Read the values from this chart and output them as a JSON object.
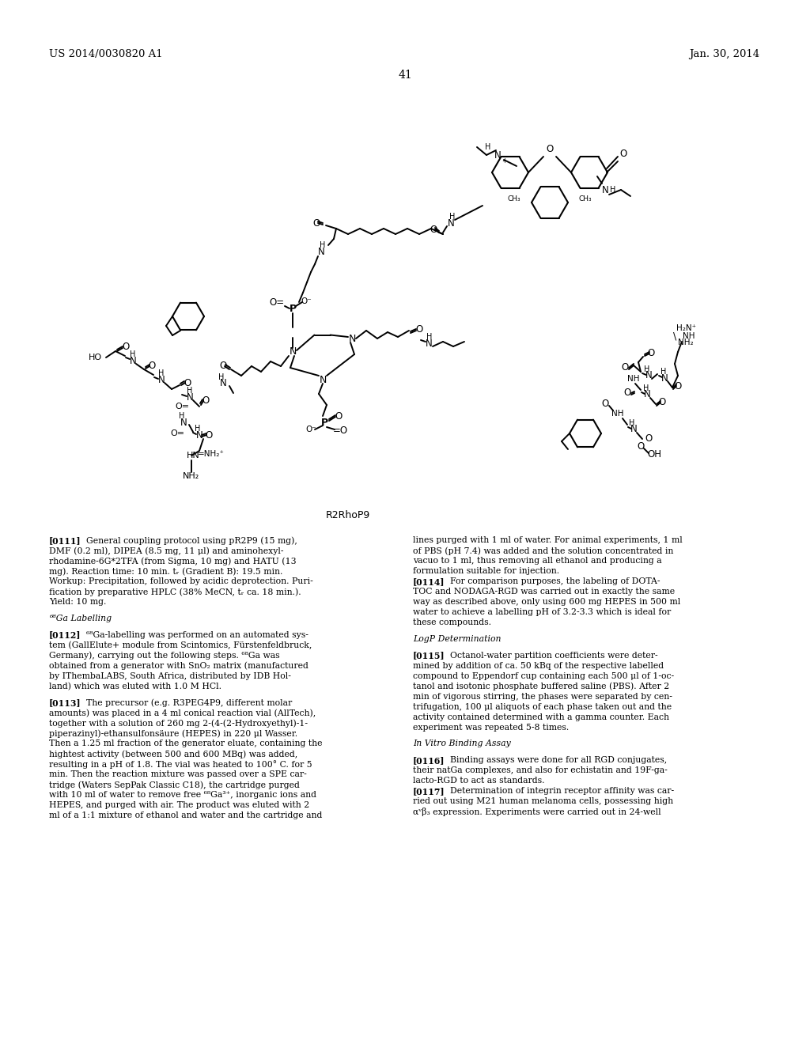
{
  "header_left": "US 2014/0030820 A1",
  "header_right": "Jan. 30, 2014",
  "page_number": "41",
  "background_color": "#ffffff",
  "text_color": "#000000",
  "molecule_label": "R2RhoP9",
  "col1_lines": [
    {
      "tag": "[0111]",
      "indent": true,
      "text": "  General coupling protocol using pR2P9 (15 mg),"
    },
    {
      "tag": "",
      "indent": false,
      "text": "DMF (0.2 ml), DIPEA (8.5 mg, 11 μl) and aminohexyl-"
    },
    {
      "tag": "",
      "indent": false,
      "text": "rhodamine-6G*2TFA (from Sigma, 10 mg) and HATU (13"
    },
    {
      "tag": "",
      "indent": false,
      "text": "mg). Reaction time: 10 min. tᵣ (Gradient B): 19.5 min."
    },
    {
      "tag": "",
      "indent": false,
      "text": "Workup: Precipitation, followed by acidic deprotection. Puri-"
    },
    {
      "tag": "",
      "indent": false,
      "text": "fication by preparative HPLC (38% MeCN, tᵣ ca. 18 min.)."
    },
    {
      "tag": "",
      "indent": false,
      "text": "Yield: 10 mg."
    },
    {
      "tag": "",
      "indent": false,
      "text": ""
    },
    {
      "tag": "heading",
      "indent": false,
      "text": "⁶⁸Ga Labelling"
    },
    {
      "tag": "",
      "indent": false,
      "text": ""
    },
    {
      "tag": "[0112]",
      "indent": true,
      "text": "  ⁶⁸Ga-labelling was performed on an automated sys-"
    },
    {
      "tag": "",
      "indent": false,
      "text": "tem (GallElute+ module from Scintomics, Fürstenfeldbruck,"
    },
    {
      "tag": "",
      "indent": false,
      "text": "Germany), carrying out the following steps. ⁶⁸Ga was"
    },
    {
      "tag": "",
      "indent": false,
      "text": "obtained from a generator with SnO₂ matrix (manufactured"
    },
    {
      "tag": "",
      "indent": false,
      "text": "by IThembaLABS, South Africa, distributed by IDB Hol-"
    },
    {
      "tag": "",
      "indent": false,
      "text": "land) which was eluted with 1.0 M HCl."
    },
    {
      "tag": "",
      "indent": false,
      "text": ""
    },
    {
      "tag": "[0113]",
      "indent": true,
      "text": "  The precursor (e.g. R3PEG4P9, different molar"
    },
    {
      "tag": "",
      "indent": false,
      "text": "amounts) was placed in a 4 ml conical reaction vial (AllTech),"
    },
    {
      "tag": "",
      "indent": false,
      "text": "together with a solution of 260 mg 2-(4-(2-Hydroxyethyl)-1-"
    },
    {
      "tag": "",
      "indent": false,
      "text": "piperazinyl)-ethansulfonsäure (HEPES) in 220 μl Wasser."
    },
    {
      "tag": "",
      "indent": false,
      "text": "Then a 1.25 ml fraction of the generator eluate, containing the"
    },
    {
      "tag": "",
      "indent": false,
      "text": "hightest activity (between 500 and 600 MBq) was added,"
    },
    {
      "tag": "",
      "indent": false,
      "text": "resulting in a pH of 1.8. The vial was heated to 100° C. for 5"
    },
    {
      "tag": "",
      "indent": false,
      "text": "min. Then the reaction mixture was passed over a SPE car-"
    },
    {
      "tag": "",
      "indent": false,
      "text": "tridge (Waters SepPak Classic C18), the cartridge purged"
    },
    {
      "tag": "",
      "indent": false,
      "text": "with 10 ml of water to remove free ⁶⁸Ga³⁺, inorganic ions and"
    },
    {
      "tag": "",
      "indent": false,
      "text": "HEPES, and purged with air. The product was eluted with 2"
    },
    {
      "tag": "",
      "indent": false,
      "text": "ml of a 1:1 mixture of ethanol and water and the cartridge and"
    }
  ],
  "col2_lines": [
    {
      "tag": "",
      "indent": false,
      "text": "lines purged with 1 ml of water. For animal experiments, 1 ml"
    },
    {
      "tag": "",
      "indent": false,
      "text": "of PBS (pH 7.4) was added and the solution concentrated in"
    },
    {
      "tag": "",
      "indent": false,
      "text": "vacuo to 1 ml, thus removing all ethanol and producing a"
    },
    {
      "tag": "",
      "indent": false,
      "text": "formulation suitable for injection."
    },
    {
      "tag": "[0114]",
      "indent": true,
      "text": "  For comparison purposes, the labeling of DOTA-"
    },
    {
      "tag": "",
      "indent": false,
      "text": "TOC and NODAGA-RGD was carried out in exactly the same"
    },
    {
      "tag": "",
      "indent": false,
      "text": "way as described above, only using 600 mg HEPES in 500 ml"
    },
    {
      "tag": "",
      "indent": false,
      "text": "water to achieve a labelling pH of 3.2-3.3 which is ideal for"
    },
    {
      "tag": "",
      "indent": false,
      "text": "these compounds."
    },
    {
      "tag": "",
      "indent": false,
      "text": ""
    },
    {
      "tag": "heading",
      "indent": false,
      "text": "LogP Determination"
    },
    {
      "tag": "",
      "indent": false,
      "text": ""
    },
    {
      "tag": "[0115]",
      "indent": true,
      "text": "  Octanol-water partition coefficients were deter-"
    },
    {
      "tag": "",
      "indent": false,
      "text": "mined by addition of ca. 50 kBq of the respective labelled"
    },
    {
      "tag": "",
      "indent": false,
      "text": "compound to Eppendorf cup containing each 500 μl of 1-oc-"
    },
    {
      "tag": "",
      "indent": false,
      "text": "tanol and isotonic phosphate buffered saline (PBS). After 2"
    },
    {
      "tag": "",
      "indent": false,
      "text": "min of vigorous stirring, the phases were separated by cen-"
    },
    {
      "tag": "",
      "indent": false,
      "text": "trifugation, 100 μl aliquots of each phase taken out and the"
    },
    {
      "tag": "",
      "indent": false,
      "text": "activity contained determined with a gamma counter. Each"
    },
    {
      "tag": "",
      "indent": false,
      "text": "experiment was repeated 5-8 times."
    },
    {
      "tag": "",
      "indent": false,
      "text": ""
    },
    {
      "tag": "heading",
      "indent": false,
      "text": "In Vitro Binding Assay"
    },
    {
      "tag": "",
      "indent": false,
      "text": ""
    },
    {
      "tag": "[0116]",
      "indent": true,
      "text": "  Binding assays were done for all RGD conjugates,"
    },
    {
      "tag": "",
      "indent": false,
      "text": "their natGa complexes, and also for echistatin and 19F-ga-"
    },
    {
      "tag": "",
      "indent": false,
      "text": "lacto-RGD to act as standards."
    },
    {
      "tag": "[0117]",
      "indent": true,
      "text": "  Determination of integrin receptor affinity was car-"
    },
    {
      "tag": "",
      "indent": false,
      "text": "ried out using M21 human melanoma cells, possessing high"
    },
    {
      "tag": "",
      "indent": false,
      "text": "αᵛβ₃ expression. Experiments were carried out in 24-well"
    }
  ]
}
